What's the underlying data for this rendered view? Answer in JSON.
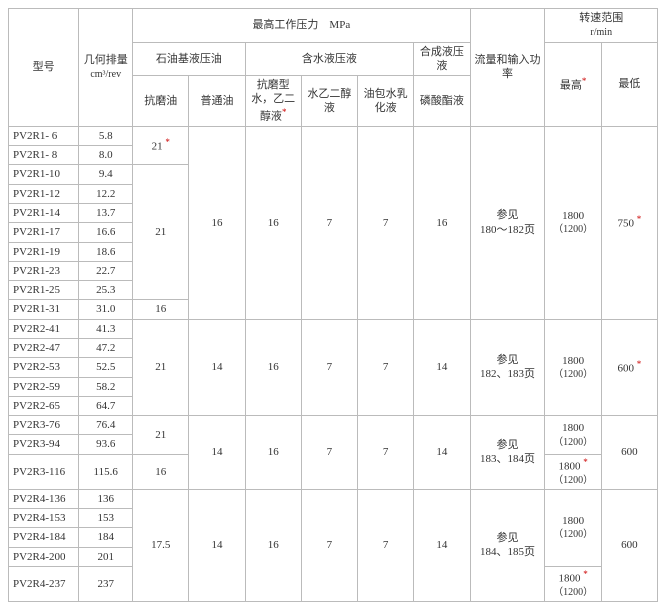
{
  "header": {
    "model": "型号",
    "displacement": "几何排量",
    "displacement_unit": "cm³/rev",
    "max_pressure": "最高工作压力　MPa",
    "petroleum_fluid": "石油基液压油",
    "water_fluid": "含水液压液",
    "synth_fluid": "合成液压液",
    "anti_wear": "抗磨油",
    "general_oil": "普通油",
    "anti_wear_water": "抗磨型水，乙二醇液",
    "water_glycol": "水乙二醇液",
    "oil_water": "油包水乳化液",
    "phosphate": "磷酸酯液",
    "flow_power": "流量和输入功率",
    "rpm_range": "转速范围",
    "rpm_unit": "r/min",
    "max": "最高",
    "min": "最低"
  },
  "star": "*",
  "models": {
    "r1_6": "PV2R1- 6",
    "d1_6": "5.8",
    "r1_8": "PV2R1- 8",
    "d1_8": "8.0",
    "r1_10": "PV2R1-10",
    "d1_10": "9.4",
    "r1_12": "PV2R1-12",
    "d1_12": "12.2",
    "r1_14": "PV2R1-14",
    "d1_14": "13.7",
    "r1_17": "PV2R1-17",
    "d1_17": "16.6",
    "r1_19": "PV2R1-19",
    "d1_19": "18.6",
    "r1_23": "PV2R1-23",
    "d1_23": "22.7",
    "r1_25": "PV2R1-25",
    "d1_25": "25.3",
    "r1_31": "PV2R1-31",
    "d1_31": "31.0",
    "r2_41": "PV2R2-41",
    "d2_41": "41.3",
    "r2_47": "PV2R2-47",
    "d2_47": "47.2",
    "r2_53": "PV2R2-53",
    "d2_53": "52.5",
    "r2_59": "PV2R2-59",
    "d2_59": "58.2",
    "r2_65": "PV2R2-65",
    "d2_65": "64.7",
    "r3_76": "PV2R3-76",
    "d3_76": "76.4",
    "r3_94": "PV2R3-94",
    "d3_94": "93.6",
    "r3_116": "PV2R3-116",
    "d3_116": "115.6",
    "r4_136": "PV2R4-136",
    "d4_136": "136",
    "r4_153": "PV2R4-153",
    "d4_153": "153",
    "r4_184": "PV2R4-184",
    "d4_184": "184",
    "r4_200": "PV2R4-200",
    "d4_200": "201",
    "r4_237": "PV2R4-237",
    "d4_237": "237"
  },
  "vals": {
    "p21": "21",
    "p21s": "21",
    "p16": "16",
    "p175": "17.5",
    "p14": "14",
    "p7": "7",
    "see1": "参见",
    "pages1": "180～182页",
    "pages2": "182、183页",
    "pages3": "183、184页",
    "pages4": "184、185页",
    "rpm1800": "1800",
    "rpm1200": "（1200）",
    "rpm1800s": "1800",
    "rpm1200s": "（1200）",
    "min750": "750",
    "min600": "600"
  }
}
